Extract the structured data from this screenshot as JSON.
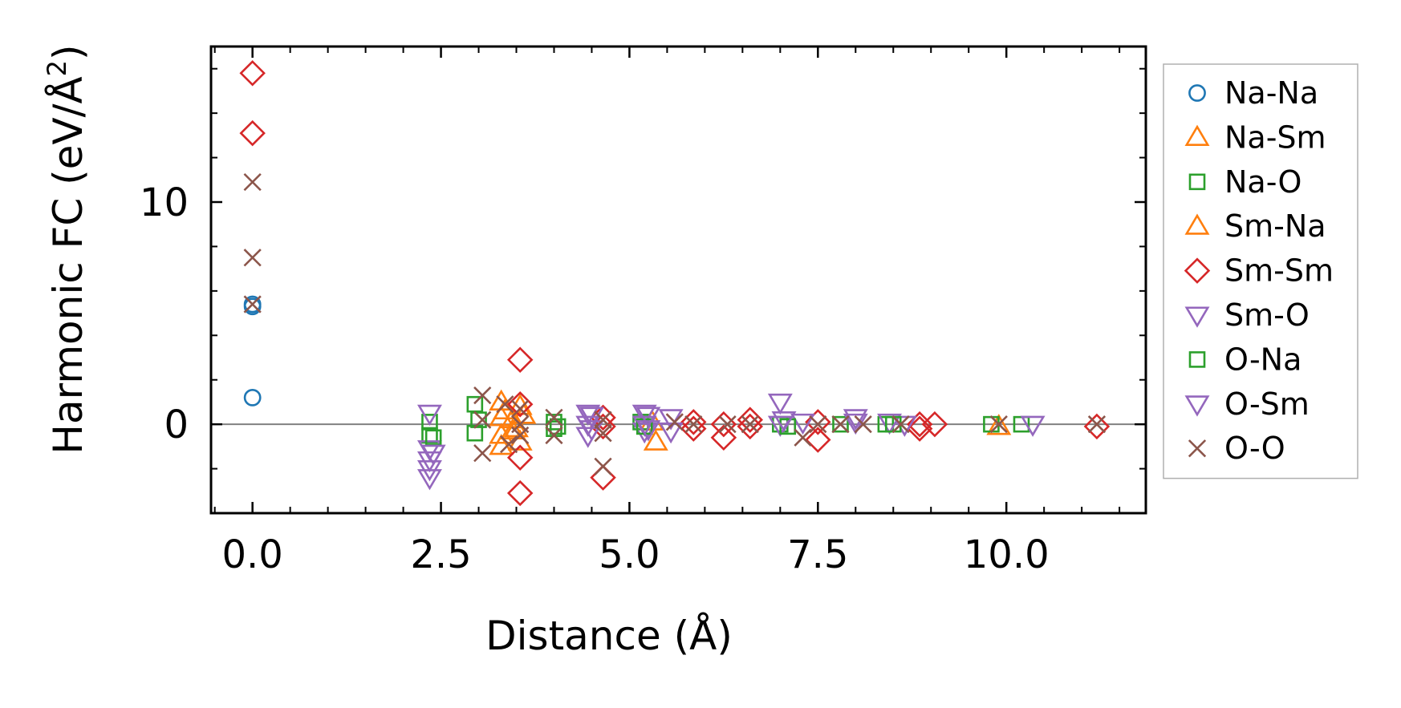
{
  "chart_data": {
    "type": "scatter",
    "title": "",
    "xlabel": "Distance (Å)",
    "ylabel_main": "Harmonic FC (eV/Å",
    "ylabel_sup": "2",
    "ylabel_close": ")",
    "xlim": [
      -0.55,
      11.85
    ],
    "ylim": [
      -4,
      17
    ],
    "x_ticks": [
      0.0,
      2.5,
      5.0,
      7.5,
      10.0
    ],
    "x_tick_labels": [
      "0.0",
      "2.5",
      "5.0",
      "7.5",
      "10.0"
    ],
    "y_ticks": [
      0,
      10
    ],
    "y_tick_labels": [
      "0",
      "10"
    ],
    "x_minor_step": 0.5,
    "y_minor_step": 2,
    "zero_line": true,
    "grid": false,
    "legend_position": "outside-right",
    "series": [
      {
        "name": "Na-Na",
        "marker": "circle",
        "color": "#1f77b4",
        "points": [
          [
            0,
            5.3
          ],
          [
            0,
            5.4
          ],
          [
            0,
            1.2
          ]
        ]
      },
      {
        "name": "Na-Sm",
        "marker": "triangle-up",
        "color": "#ff7f0e",
        "points": [
          [
            3.3,
            1.0
          ],
          [
            3.3,
            0.3
          ],
          [
            3.3,
            -0.5
          ],
          [
            3.3,
            -1.0
          ],
          [
            3.45,
            0.2
          ],
          [
            3.45,
            -0.3
          ],
          [
            3.55,
            0.8
          ],
          [
            3.55,
            -0.8
          ],
          [
            5.35,
            -0.8
          ],
          [
            5.3,
            0.1
          ],
          [
            9.9,
            -0.1
          ]
        ]
      },
      {
        "name": "Na-O",
        "marker": "square",
        "color": "#2ca02c",
        "points": [
          [
            2.35,
            0.1
          ],
          [
            2.35,
            -0.5
          ],
          [
            2.95,
            0.9
          ],
          [
            2.95,
            -0.4
          ],
          [
            4.0,
            0.1
          ],
          [
            4.0,
            -0.2
          ],
          [
            5.15,
            0.1
          ],
          [
            7.0,
            0.0
          ],
          [
            7.8,
            0.0
          ],
          [
            8.4,
            0.0
          ],
          [
            9.8,
            0.0
          ],
          [
            10.2,
            0.0
          ]
        ]
      },
      {
        "name": "Sm-Na",
        "marker": "triangle-up",
        "color": "#ff7f0e",
        "points": [
          [
            3.35,
            0.6
          ],
          [
            3.5,
            -0.2
          ],
          [
            3.6,
            0.4
          ]
        ]
      },
      {
        "name": "Sm-Sm",
        "marker": "diamond",
        "color": "#d62728",
        "points": [
          [
            0,
            15.8
          ],
          [
            0,
            13.1
          ],
          [
            3.55,
            2.9
          ],
          [
            3.55,
            0.9
          ],
          [
            3.55,
            -1.5
          ],
          [
            3.55,
            -3.1
          ],
          [
            4.65,
            0.3
          ],
          [
            4.65,
            -0.1
          ],
          [
            4.65,
            -2.4
          ],
          [
            5.85,
            0.1
          ],
          [
            5.85,
            -0.2
          ],
          [
            6.25,
            0.0
          ],
          [
            6.25,
            -0.6
          ],
          [
            6.6,
            0.2
          ],
          [
            6.6,
            -0.1
          ],
          [
            7.5,
            0.1
          ],
          [
            7.5,
            -0.7
          ],
          [
            8.85,
            0.0
          ],
          [
            8.85,
            -0.2
          ],
          [
            9.05,
            0.0
          ],
          [
            11.2,
            -0.1
          ]
        ]
      },
      {
        "name": "Sm-O",
        "marker": "triangle-down",
        "color": "#9467bd",
        "points": [
          [
            2.35,
            0.5
          ],
          [
            2.35,
            -1.1
          ],
          [
            2.35,
            -1.6
          ],
          [
            2.35,
            -2.0
          ],
          [
            2.35,
            -2.4
          ],
          [
            4.45,
            0.5
          ],
          [
            4.45,
            0.0
          ],
          [
            4.45,
            -0.5
          ],
          [
            5.2,
            0.5
          ],
          [
            5.2,
            0.0
          ],
          [
            5.2,
            -0.3
          ],
          [
            5.55,
            0.3
          ],
          [
            5.55,
            -0.3
          ],
          [
            7.0,
            1.0
          ],
          [
            7.0,
            0.0
          ],
          [
            7.3,
            0.1
          ],
          [
            8.0,
            0.3
          ],
          [
            8.45,
            0.1
          ],
          [
            8.65,
            0.0
          ],
          [
            10.35,
            0.0
          ]
        ]
      },
      {
        "name": "O-Na",
        "marker": "square",
        "color": "#2ca02c",
        "points": [
          [
            2.4,
            -0.6
          ],
          [
            3.0,
            0.2
          ],
          [
            4.05,
            -0.1
          ],
          [
            5.2,
            -0.1
          ],
          [
            7.1,
            -0.1
          ],
          [
            8.5,
            0.0
          ]
        ]
      },
      {
        "name": "O-Sm",
        "marker": "triangle-down",
        "color": "#9467bd",
        "points": [
          [
            2.4,
            -1.3
          ],
          [
            4.5,
            0.4
          ],
          [
            4.5,
            -0.2
          ],
          [
            5.25,
            0.4
          ],
          [
            5.25,
            -0.2
          ],
          [
            7.05,
            0.2
          ],
          [
            8.0,
            0.1
          ]
        ]
      },
      {
        "name": "O-O",
        "marker": "x",
        "color": "#8c564b",
        "points": [
          [
            0,
            10.9
          ],
          [
            0,
            7.5
          ],
          [
            0,
            5.4
          ],
          [
            3.05,
            1.3
          ],
          [
            3.05,
            0.2
          ],
          [
            3.05,
            -1.3
          ],
          [
            3.35,
            0.9
          ],
          [
            3.4,
            -0.9
          ],
          [
            3.55,
            0.7
          ],
          [
            3.55,
            0.0
          ],
          [
            3.55,
            -0.5
          ],
          [
            4.0,
            0.3
          ],
          [
            4.0,
            -0.5
          ],
          [
            4.65,
            0.2
          ],
          [
            4.65,
            -0.4
          ],
          [
            4.65,
            -1.9
          ],
          [
            5.6,
            0.1
          ],
          [
            5.85,
            0.0
          ],
          [
            6.3,
            0.0
          ],
          [
            6.6,
            0.0
          ],
          [
            7.3,
            -0.6
          ],
          [
            7.5,
            0.0
          ],
          [
            7.8,
            0.0
          ],
          [
            8.1,
            0.0
          ],
          [
            8.6,
            0.0
          ],
          [
            9.9,
            0.0
          ],
          [
            11.2,
            0.0
          ]
        ]
      }
    ]
  }
}
